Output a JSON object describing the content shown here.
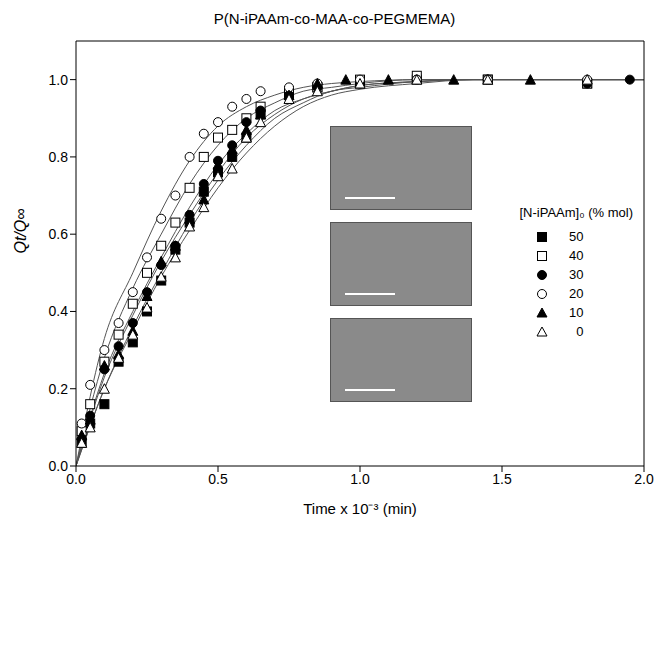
{
  "chart_data": {
    "type": "scatter",
    "title": "P(N-iPAAm-co-MAA-co-PEGMEMA)",
    "x_label": "Time x 10⁻³ (min)",
    "y_label": "Qt/Q∞",
    "legend_title": "[N-iPAAm]₀ (% mol)",
    "legend": "right",
    "grid": false,
    "xlim": [
      0,
      2.0
    ],
    "xticks": [
      {
        "value": 0,
        "label": "0.0"
      },
      {
        "value": 0.5,
        "label": "0.5"
      },
      {
        "value": 1.0,
        "label": "1.0"
      },
      {
        "value": 1.5,
        "label": "1.5"
      },
      {
        "value": 2.0,
        "label": "2.0"
      }
    ],
    "ylim": [
      0,
      1.1
    ],
    "yticks": [
      {
        "value": 0,
        "label": "0.0"
      },
      {
        "value": 0.2,
        "label": "0.2"
      },
      {
        "value": 0.4,
        "label": "0.4"
      },
      {
        "value": 0.6,
        "label": "0.6"
      },
      {
        "value": 0.8,
        "label": "0.8"
      },
      {
        "value": 1.0,
        "label": "1.0"
      }
    ],
    "fit_x": [
      0,
      0.1,
      0.2,
      0.3,
      0.4,
      0.5,
      0.6,
      0.7,
      0.8,
      0.9,
      1.0,
      1.2,
      1.4,
      1.6,
      1.8,
      2.0
    ],
    "series": [
      {
        "name": "50",
        "color": "#000000",
        "marker": "filled_square",
        "x": [
          0.02,
          0.05,
          0.1,
          0.15,
          0.2,
          0.25,
          0.3,
          0.35,
          0.4,
          0.45,
          0.5,
          0.55,
          0.6,
          0.65,
          0.75,
          0.85,
          1.0,
          1.2,
          1.45,
          1.8
        ],
        "values": [
          0.06,
          0.11,
          0.16,
          0.27,
          0.32,
          0.4,
          0.48,
          0.56,
          0.63,
          0.71,
          0.76,
          0.8,
          0.85,
          0.91,
          0.96,
          0.98,
          0.99,
          1.0,
          1.0,
          0.99
        ],
        "fit": [
          0,
          0.2,
          0.36,
          0.5,
          0.63,
          0.74,
          0.83,
          0.9,
          0.94,
          0.97,
          0.98,
          0.995,
          1,
          1,
          1,
          1
        ]
      },
      {
        "name": "40",
        "color": "#000000",
        "marker": "open_square",
        "x": [
          0.02,
          0.05,
          0.1,
          0.15,
          0.2,
          0.25,
          0.3,
          0.35,
          0.4,
          0.45,
          0.5,
          0.55,
          0.6,
          0.65,
          0.75,
          0.85,
          1.0,
          1.2,
          1.45,
          1.8
        ],
        "values": [
          0.09,
          0.16,
          0.27,
          0.34,
          0.42,
          0.5,
          0.57,
          0.63,
          0.72,
          0.8,
          0.85,
          0.87,
          0.9,
          0.93,
          0.97,
          0.98,
          1.0,
          1.01,
          1.0,
          0.99
        ],
        "fit": [
          0,
          0.28,
          0.46,
          0.6,
          0.73,
          0.83,
          0.9,
          0.94,
          0.97,
          0.98,
          0.99,
          1,
          1,
          1,
          1,
          1
        ]
      },
      {
        "name": "30",
        "color": "#000000",
        "marker": "filled_circle",
        "x": [
          0.02,
          0.05,
          0.1,
          0.15,
          0.2,
          0.25,
          0.3,
          0.35,
          0.4,
          0.45,
          0.5,
          0.55,
          0.6,
          0.65,
          0.75,
          0.85,
          1.0,
          1.2,
          1.45,
          1.8,
          1.95
        ],
        "values": [
          0.07,
          0.13,
          0.25,
          0.31,
          0.37,
          0.45,
          0.52,
          0.57,
          0.65,
          0.73,
          0.79,
          0.83,
          0.89,
          0.92,
          0.96,
          0.98,
          0.99,
          1.0,
          1.0,
          0.99,
          1.0
        ],
        "fit": [
          0,
          0.24,
          0.4,
          0.54,
          0.67,
          0.78,
          0.86,
          0.92,
          0.95,
          0.97,
          0.985,
          0.995,
          1,
          1,
          1,
          1
        ]
      },
      {
        "name": "20",
        "color": "#000000",
        "marker": "open_circle",
        "x": [
          0.02,
          0.05,
          0.1,
          0.15,
          0.2,
          0.25,
          0.3,
          0.35,
          0.4,
          0.45,
          0.5,
          0.55,
          0.6,
          0.65,
          0.75,
          0.85,
          1.0,
          1.2,
          1.45,
          1.8
        ],
        "values": [
          0.11,
          0.21,
          0.3,
          0.37,
          0.45,
          0.54,
          0.64,
          0.7,
          0.8,
          0.86,
          0.89,
          0.93,
          0.95,
          0.97,
          0.98,
          0.99,
          1.0,
          1.0,
          1.0,
          1.0
        ],
        "fit": [
          0,
          0.33,
          0.5,
          0.66,
          0.79,
          0.88,
          0.93,
          0.96,
          0.98,
          0.99,
          0.995,
          1,
          1,
          1,
          1,
          1
        ]
      },
      {
        "name": "10",
        "color": "#000000",
        "marker": "filled_triangle",
        "x": [
          0.02,
          0.05,
          0.1,
          0.15,
          0.2,
          0.25,
          0.3,
          0.35,
          0.4,
          0.45,
          0.5,
          0.55,
          0.6,
          0.65,
          0.75,
          0.85,
          0.95,
          1.1,
          1.33,
          1.6
        ],
        "values": [
          0.08,
          0.12,
          0.26,
          0.29,
          0.35,
          0.44,
          0.53,
          0.57,
          0.64,
          0.69,
          0.78,
          0.82,
          0.87,
          0.91,
          0.96,
          0.99,
          1.0,
          1.0,
          1.0,
          1.0
        ],
        "fit": [
          0,
          0.23,
          0.39,
          0.53,
          0.65,
          0.76,
          0.85,
          0.91,
          0.95,
          0.97,
          0.985,
          0.995,
          1,
          1,
          1,
          1
        ]
      },
      {
        "name": "0",
        "color": "#000000",
        "marker": "open_triangle",
        "x": [
          0.02,
          0.05,
          0.1,
          0.15,
          0.2,
          0.25,
          0.3,
          0.35,
          0.4,
          0.45,
          0.5,
          0.55,
          0.6,
          0.65,
          0.75,
          0.85,
          1.0,
          1.2,
          1.45,
          1.8
        ],
        "values": [
          0.06,
          0.1,
          0.2,
          0.28,
          0.34,
          0.41,
          0.49,
          0.54,
          0.62,
          0.67,
          0.75,
          0.77,
          0.85,
          0.89,
          0.95,
          0.97,
          0.99,
          1.0,
          1.0,
          1.0
        ],
        "fit": [
          0,
          0.2,
          0.35,
          0.49,
          0.61,
          0.72,
          0.81,
          0.88,
          0.93,
          0.96,
          0.975,
          0.99,
          1,
          1,
          1,
          1
        ]
      }
    ]
  }
}
